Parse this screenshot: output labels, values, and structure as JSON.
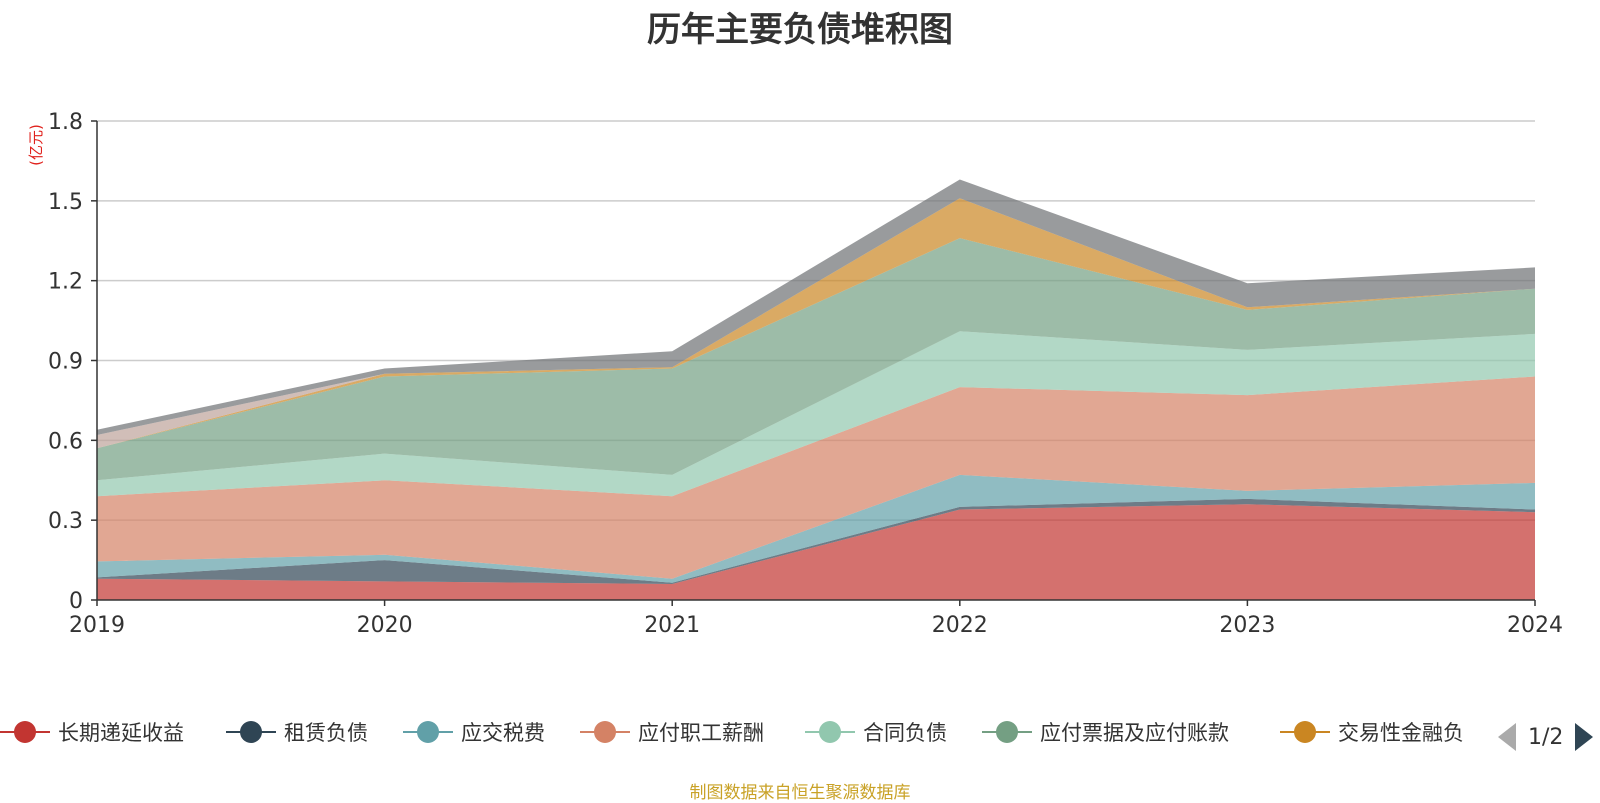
{
  "chart_data": {
    "type": "area",
    "title": "历年主要负债堆积图",
    "ylabel": "(亿元)",
    "ylim": [
      0,
      1.8
    ],
    "yticks": [
      "0",
      "0.3",
      "0.6",
      "0.9",
      "1.2",
      "1.5",
      "1.8"
    ],
    "categories": [
      "2019",
      "2020",
      "2021",
      "2022",
      "2023",
      "2024"
    ],
    "stacked": true,
    "grid": true,
    "series": [
      {
        "name": "长期递延收益",
        "color": "#c23531",
        "values": [
          0.08,
          0.07,
          0.06,
          0.34,
          0.36,
          0.33
        ]
      },
      {
        "name": "租赁负债",
        "color": "#2f4554",
        "values": [
          0.005,
          0.08,
          0.005,
          0.01,
          0.02,
          0.01
        ]
      },
      {
        "name": "应交税费",
        "color": "#61a0a8",
        "values": [
          0.06,
          0.02,
          0.015,
          0.12,
          0.03,
          0.1
        ]
      },
      {
        "name": "应付职工薪酬",
        "color": "#d48265",
        "values": [
          0.245,
          0.28,
          0.31,
          0.33,
          0.36,
          0.4
        ]
      },
      {
        "name": "合同负债",
        "color": "#91c7ae",
        "values": [
          0.06,
          0.1,
          0.08,
          0.21,
          0.17,
          0.16
        ]
      },
      {
        "name": "应付票据及应付账款",
        "color": "#749f83",
        "values": [
          0.12,
          0.29,
          0.4,
          0.35,
          0.15,
          0.17
        ]
      },
      {
        "name": "交易性金融负",
        "color": "#ca8622",
        "values": [
          0.0,
          0.01,
          0.005,
          0.15,
          0.01,
          0.0
        ]
      },
      {
        "name": "",
        "color": "#bda29a",
        "values": [
          0.05,
          0.0,
          0.0,
          0.0,
          0.0,
          0.0
        ]
      },
      {
        "name": "",
        "color": "#6e7074",
        "values": [
          0.02,
          0.02,
          0.06,
          0.07,
          0.09,
          0.08
        ]
      }
    ],
    "legend": {
      "position": "bottom",
      "page": "1/2"
    }
  },
  "source_note": "制图数据来自恒生聚源数据库"
}
